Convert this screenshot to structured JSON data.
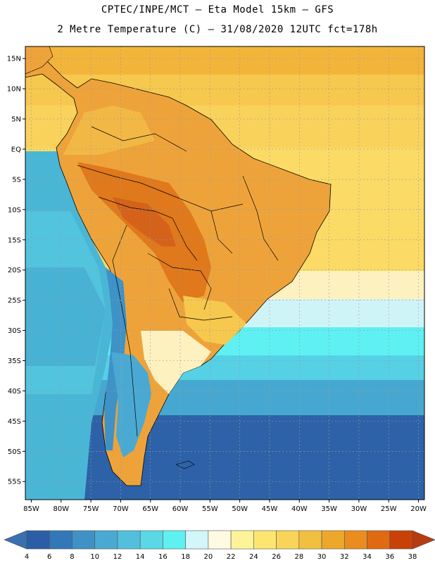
{
  "header": {
    "line1": "CPTEC/INPE/MCT –  Eta Model 15km – GFS",
    "line2": "2 Metre Temperature (C) – 31/08/2020 12UTC fct=178h"
  },
  "map": {
    "lat_range": [
      -58,
      17
    ],
    "lon_range": [
      -86,
      -19
    ],
    "lat_ticks": [
      "15N",
      "10N",
      "5N",
      "EQ",
      "5S",
      "10S",
      "15S",
      "20S",
      "25S",
      "30S",
      "35S",
      "40S",
      "45S",
      "50S",
      "55S"
    ],
    "lat_values": [
      15,
      10,
      5,
      0,
      -5,
      -10,
      -15,
      -20,
      -25,
      -30,
      -35,
      -40,
      -45,
      -50,
      -55
    ],
    "lon_ticks": [
      "85W",
      "80W",
      "75W",
      "70W",
      "65W",
      "60W",
      "55W",
      "50W",
      "45W",
      "40W",
      "35W",
      "30W",
      "25W",
      "20W"
    ],
    "lon_values": [
      -85,
      -80,
      -75,
      -70,
      -65,
      -60,
      -55,
      -50,
      -45,
      -40,
      -35,
      -30,
      -25,
      -20
    ]
  },
  "colorbar": {
    "labels": [
      "4",
      "6",
      "8",
      "10",
      "12",
      "14",
      "16",
      "18",
      "20",
      "22",
      "24",
      "26",
      "28",
      "30",
      "32",
      "34",
      "36",
      "38"
    ],
    "colors": [
      "#2b5ea6",
      "#3278b8",
      "#3e92c6",
      "#4aa9d2",
      "#52c0dc",
      "#5ad8e6",
      "#5ff0f2",
      "#d2f6fa",
      "#fffbe2",
      "#fdf49a",
      "#fde670",
      "#f8d458",
      "#f2c040",
      "#eda72a",
      "#ea8c1e",
      "#e06a12",
      "#c84208"
    ],
    "low_color": "#3a70b0",
    "high_color": "#b83a10"
  }
}
